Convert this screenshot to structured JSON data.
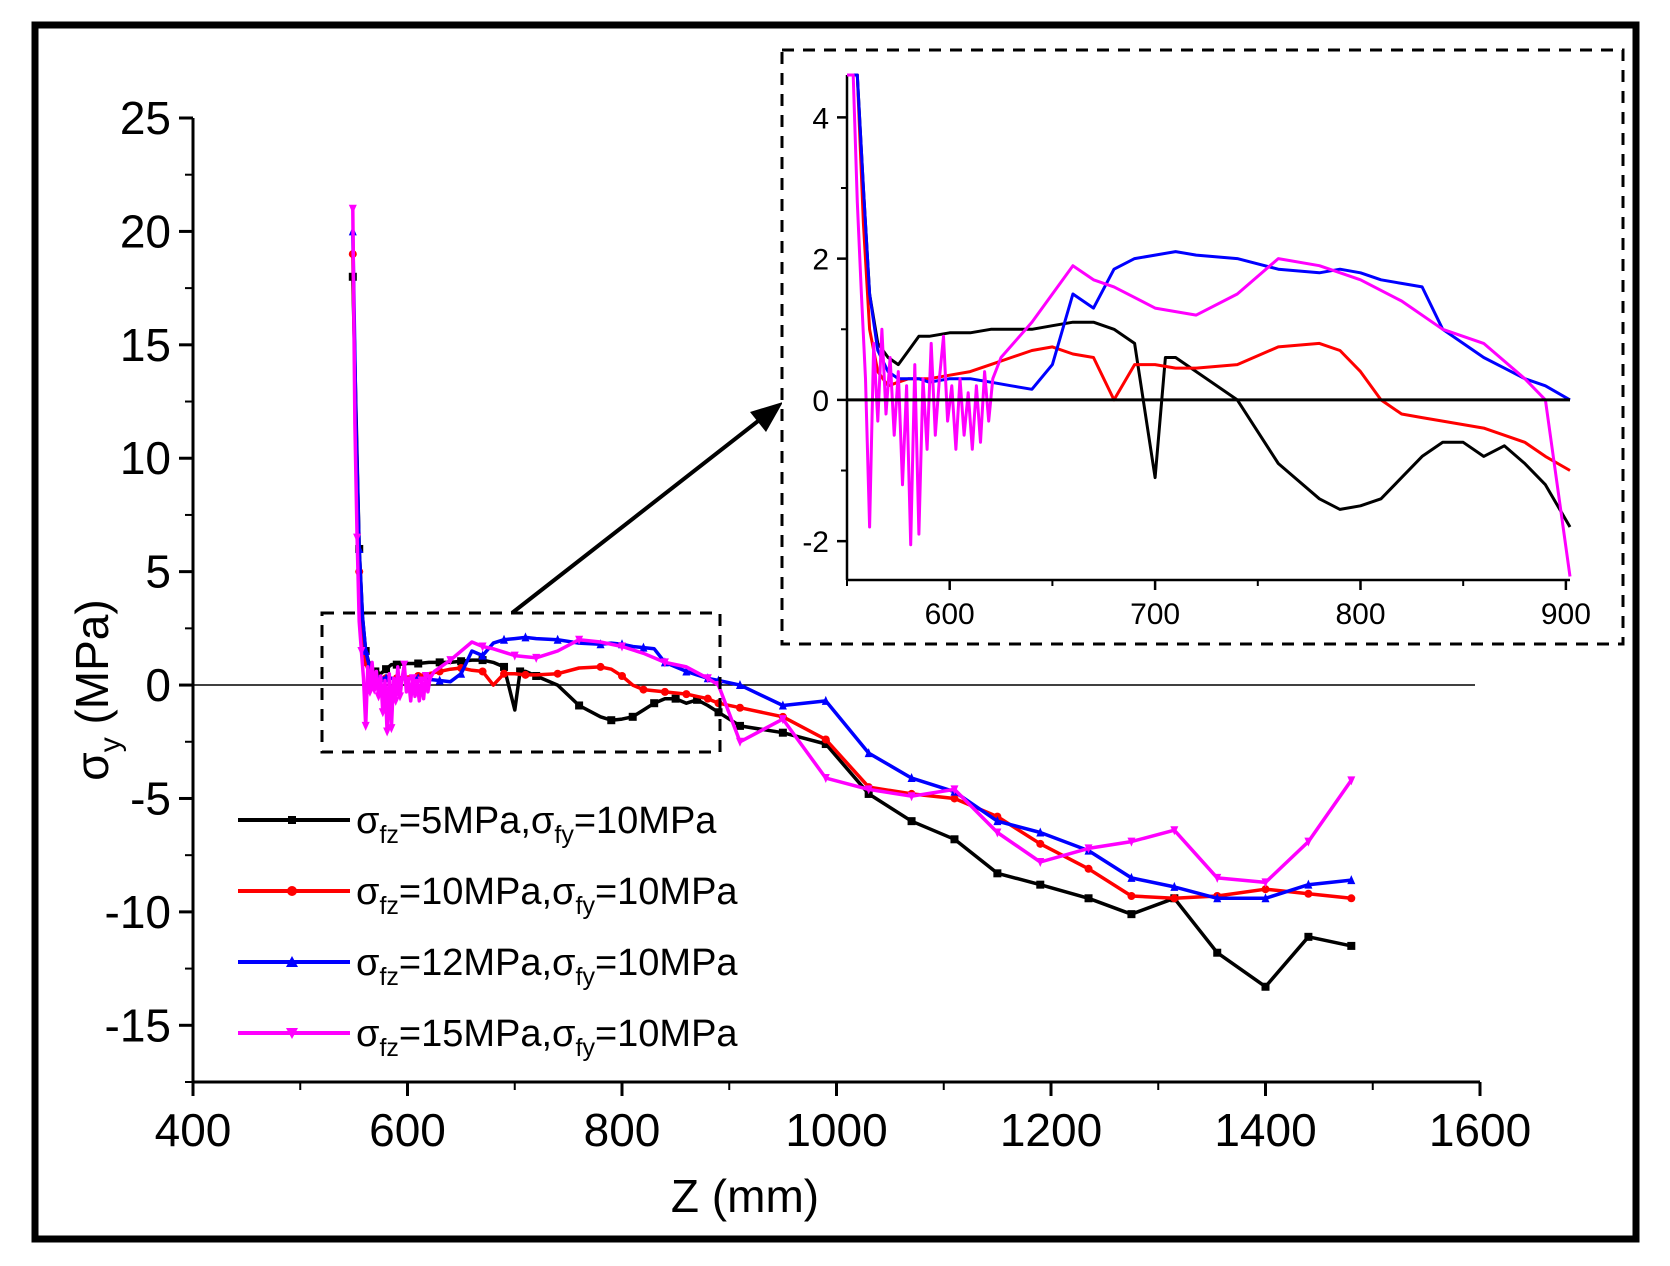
{
  "chart_data": [
    {
      "type": "line",
      "role": "main",
      "xlabel": "Z (mm)",
      "ylabel": {
        "symbol": "σ",
        "subscript": "y",
        "unit": " (MPa)"
      },
      "xlim": [
        400,
        1600
      ],
      "ylim": [
        -17.5,
        25
      ],
      "xticks": [
        400,
        600,
        800,
        1000,
        1200,
        1400,
        1600
      ],
      "yticks": [
        -15,
        -10,
        -5,
        0,
        5,
        10,
        15,
        20,
        25
      ],
      "xtick_labels": [
        "400",
        "600",
        "800",
        "1000",
        "1200",
        "1400",
        "1600"
      ],
      "ytick_labels": [
        "-15",
        "-10",
        "-5",
        "0",
        "5",
        "10",
        "15",
        "20",
        "25"
      ],
      "zero_line": true,
      "legend_position": "lower-left",
      "series": [
        {
          "name": "σfz=5MPa,σfy=10MPa",
          "label": {
            "a": "σ",
            "a_sub": "fz",
            "b": "=5MPa,σ",
            "b_sub": "fy",
            "c": "=10MPa"
          },
          "color": "#000000",
          "marker": "square",
          "x": [
            549,
            552,
            555,
            558,
            561,
            565,
            570,
            575,
            580,
            585,
            590,
            600,
            610,
            620,
            630,
            640,
            650,
            660,
            670,
            680,
            690,
            700,
            705,
            710,
            720,
            740,
            760,
            780,
            790,
            800,
            810,
            820,
            830,
            840,
            850,
            860,
            870,
            880,
            890,
            910,
            950,
            990,
            1030,
            1070,
            1110,
            1150,
            1190,
            1235,
            1275,
            1315,
            1355,
            1400,
            1440,
            1480
          ],
          "y": [
            18,
            12,
            6,
            3,
            1.5,
            0.8,
            0.6,
            0.5,
            0.7,
            0.9,
            0.9,
            0.95,
            0.95,
            1.0,
            1.0,
            1.0,
            1.05,
            1.1,
            1.1,
            1.0,
            0.8,
            -1.1,
            0.6,
            0.6,
            0.4,
            0.0,
            -0.9,
            -1.4,
            -1.55,
            -1.5,
            -1.4,
            -1.1,
            -0.8,
            -0.6,
            -0.6,
            -0.8,
            -0.65,
            -0.9,
            -1.2,
            -1.8,
            -2.1,
            -2.6,
            -4.8,
            -6.0,
            -6.8,
            -8.3,
            -8.8,
            -9.4,
            -10.1,
            -9.4,
            -11.8,
            -13.3,
            -11.1,
            -11.5
          ]
        },
        {
          "name": "σfz=10MPa,σfy=10MPa",
          "label": {
            "a": "σ",
            "a_sub": "fz",
            "b": "=10MPa,σ",
            "b_sub": "fy",
            "c": "=10MPa"
          },
          "color": "#ff0000",
          "marker": "circle",
          "x": [
            549,
            552,
            555,
            558,
            561,
            565,
            570,
            575,
            580,
            585,
            590,
            600,
            610,
            620,
            630,
            640,
            650,
            660,
            670,
            680,
            690,
            700,
            710,
            720,
            740,
            760,
            780,
            790,
            800,
            810,
            820,
            830,
            840,
            850,
            860,
            870,
            880,
            890,
            910,
            950,
            990,
            1030,
            1070,
            1110,
            1150,
            1190,
            1235,
            1275,
            1315,
            1355,
            1400,
            1440,
            1480
          ],
          "y": [
            19,
            11,
            5,
            2.5,
            1.0,
            0.4,
            0.2,
            0.25,
            0.3,
            0.3,
            0.3,
            0.35,
            0.4,
            0.5,
            0.6,
            0.7,
            0.75,
            0.65,
            0.6,
            0.0,
            0.5,
            0.5,
            0.45,
            0.45,
            0.5,
            0.75,
            0.8,
            0.7,
            0.4,
            0.0,
            -0.2,
            -0.25,
            -0.3,
            -0.35,
            -0.4,
            -0.5,
            -0.6,
            -0.8,
            -1.0,
            -1.4,
            -2.4,
            -4.5,
            -4.8,
            -5.0,
            -5.8,
            -7.0,
            -8.1,
            -9.3,
            -9.4,
            -9.3,
            -9.0,
            -9.2,
            -9.4
          ]
        },
        {
          "name": "σfz=12MPa,σfy=10MPa",
          "label": {
            "a": "σ",
            "a_sub": "fz",
            "b": "=12MPa,σ",
            "b_sub": "fy",
            "c": "=10MPa"
          },
          "color": "#0000ff",
          "marker": "triangle-up",
          "x": [
            549,
            552,
            555,
            558,
            561,
            565,
            570,
            575,
            580,
            585,
            590,
            600,
            610,
            620,
            630,
            640,
            650,
            660,
            670,
            680,
            690,
            700,
            710,
            720,
            740,
            760,
            780,
            790,
            800,
            810,
            820,
            830,
            840,
            850,
            860,
            870,
            880,
            890,
            910,
            950,
            990,
            1030,
            1070,
            1110,
            1150,
            1190,
            1235,
            1275,
            1315,
            1355,
            1400,
            1440,
            1480
          ],
          "y": [
            20,
            11.5,
            6,
            3,
            1.5,
            0.7,
            0.4,
            0.3,
            0.3,
            0.3,
            0.25,
            0.3,
            0.3,
            0.25,
            0.2,
            0.15,
            0.5,
            1.5,
            1.3,
            1.85,
            2.0,
            2.05,
            2.1,
            2.05,
            2.0,
            1.85,
            1.8,
            1.85,
            1.8,
            1.7,
            1.65,
            1.6,
            1.0,
            0.8,
            0.6,
            0.45,
            0.3,
            0.2,
            0.0,
            -0.9,
            -0.7,
            -3.0,
            -4.1,
            -4.7,
            -6.0,
            -6.5,
            -7.3,
            -8.5,
            -8.9,
            -9.4,
            -9.4,
            -8.8,
            -8.6
          ]
        },
        {
          "name": "σfz=15MPa,σfy=10MPa",
          "label": {
            "a": "σ",
            "a_sub": "fz",
            "b": "=15MPa,σ",
            "b_sub": "fy",
            "c": "=10MPa"
          },
          "color": "#ff00ff",
          "marker": "triangle-down",
          "x": [
            549,
            551,
            553,
            555,
            557,
            559,
            561,
            563,
            565,
            567,
            569,
            571,
            573,
            575,
            577,
            579,
            581,
            583,
            585,
            587,
            589,
            591,
            593,
            595,
            597,
            599,
            601,
            603,
            605,
            607,
            609,
            611,
            613,
            615,
            617,
            619,
            621,
            625,
            640,
            660,
            670,
            680,
            700,
            710,
            720,
            740,
            760,
            780,
            800,
            820,
            840,
            860,
            880,
            890,
            910,
            950,
            990,
            1030,
            1070,
            1110,
            1150,
            1190,
            1235,
            1275,
            1315,
            1355,
            1400,
            1440,
            1480
          ],
          "y": [
            21,
            11.5,
            6.5,
            2.8,
            1.5,
            0.3,
            -1.8,
            0.8,
            -0.3,
            1.0,
            -0.2,
            0.6,
            -0.5,
            0.4,
            -1.2,
            0.2,
            -2.05,
            0.5,
            -1.9,
            0.3,
            -0.7,
            0.8,
            -0.5,
            0.3,
            0.9,
            -0.3,
            0.2,
            -0.7,
            0.3,
            -0.5,
            0.1,
            -0.7,
            0.2,
            -0.6,
            0.4,
            -0.3,
            0.3,
            0.6,
            1.1,
            1.9,
            1.7,
            1.6,
            1.3,
            1.25,
            1.2,
            1.5,
            2.0,
            1.9,
            1.7,
            1.4,
            1.0,
            0.8,
            0.3,
            0.0,
            -2.5,
            -1.5,
            -4.1,
            -4.6,
            -4.9,
            -4.6,
            -6.5,
            -7.8,
            -7.2,
            -6.9,
            -6.4,
            -8.5,
            -8.7,
            -6.9,
            -4.2
          ]
        }
      ],
      "annotation": "dashed rectangle over Z 520–890, σy -3 to 3.2, arrow pointing to inset"
    },
    {
      "type": "line",
      "role": "inset",
      "xlim": [
        550,
        902
      ],
      "ylim": [
        -2.55,
        4.6
      ],
      "xticks": [
        600,
        700,
        800,
        900
      ],
      "yticks": [
        -2,
        0,
        2,
        4
      ],
      "xtick_labels": [
        "600",
        "700",
        "800",
        "900"
      ],
      "ytick_labels": [
        "-2",
        "0",
        "2",
        "4"
      ],
      "zero_line": true,
      "series_source": "same series as main plot, zoomed"
    }
  ]
}
